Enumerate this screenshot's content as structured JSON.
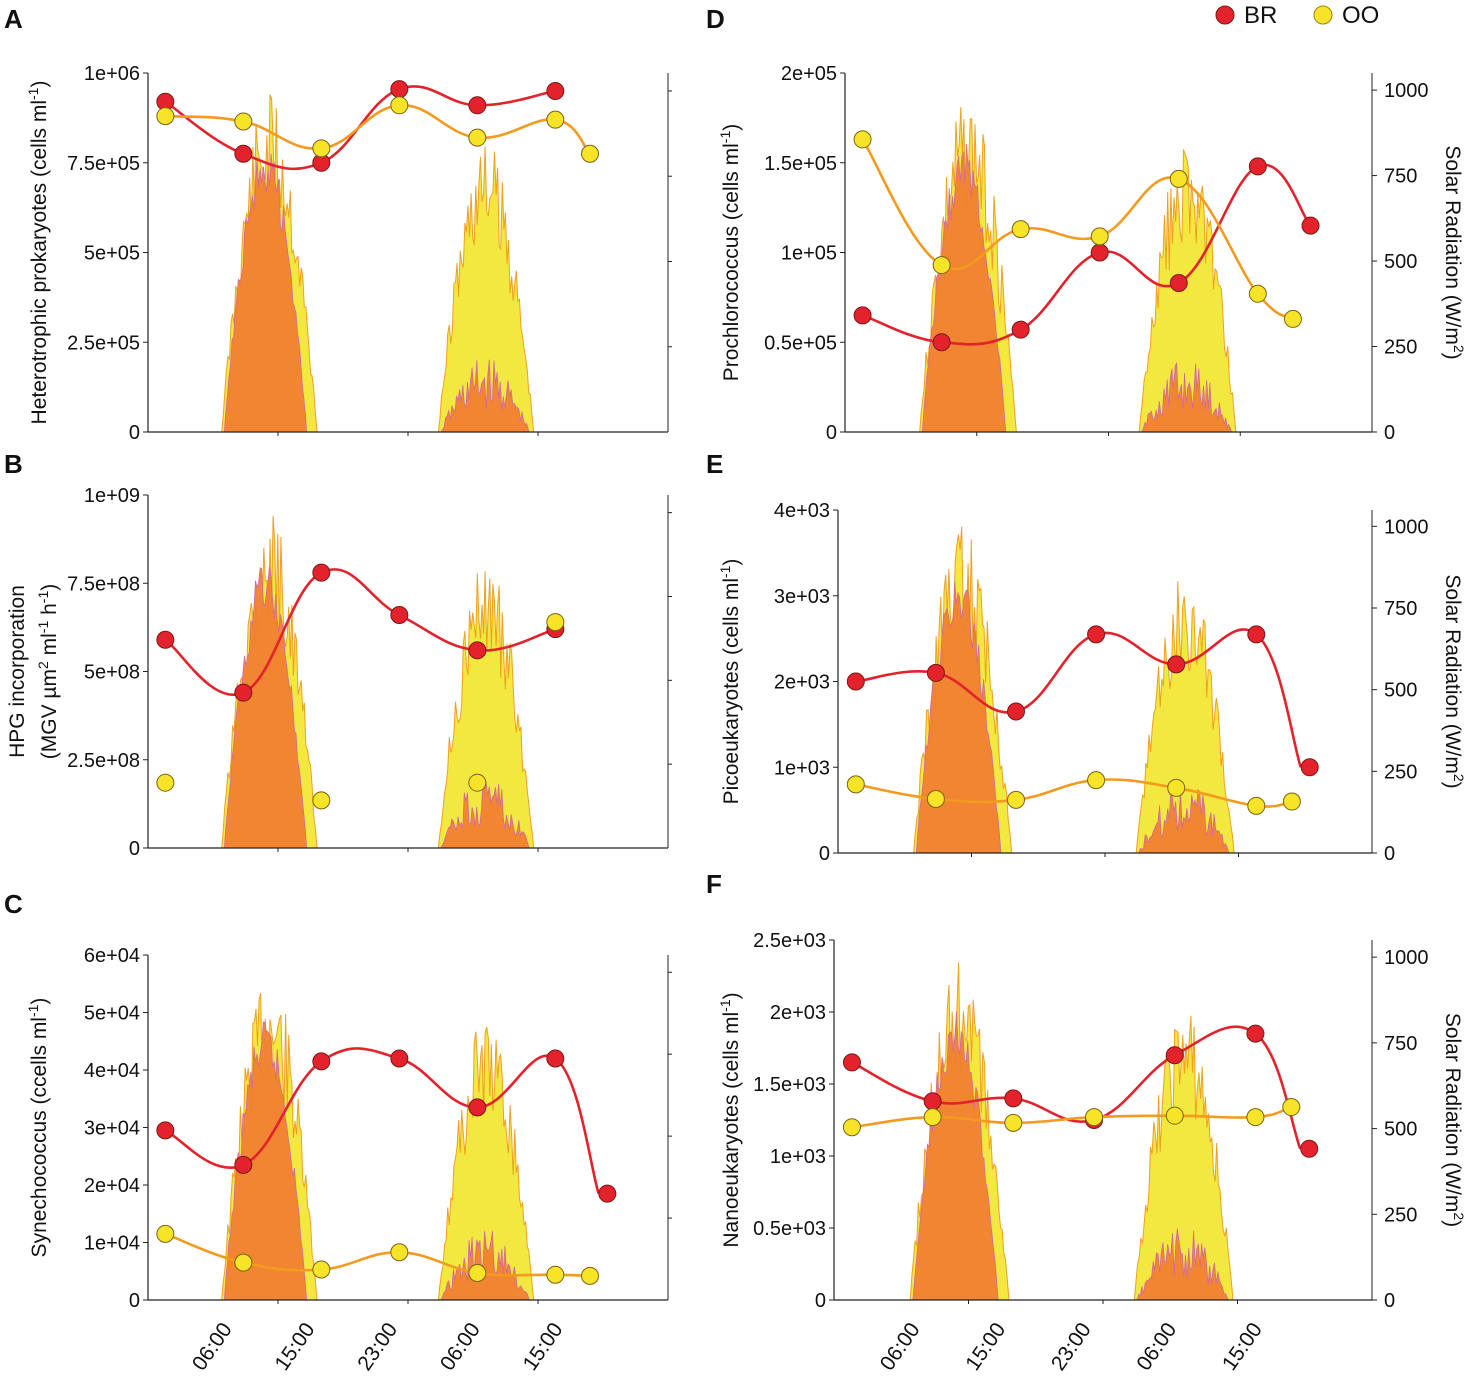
{
  "legend": [
    {
      "label": "BR",
      "color": "#e4222b"
    },
    {
      "label": "OO",
      "color": "#f7e327"
    }
  ],
  "colors": {
    "br_line": "#e4222b",
    "oo_line": "#f39a1f",
    "br_area": "#f08030",
    "oo_area": "#f2e840",
    "area_edge_br": "#d26aa0",
    "area_edge_oo": "#f0a020",
    "axis": "#222222"
  },
  "time_tick_labels": [
    "06:00",
    "15:00",
    "23:00",
    "06:00",
    "15:00"
  ],
  "solar_radiation": {
    "axis_label_main": "Solar Radiation (W/m",
    "axis_label_sup": "2",
    "axis_label_tail": ")",
    "ticks": [
      "0",
      "250",
      "500",
      "750",
      "1000"
    ],
    "tick_values": [
      0,
      250,
      500,
      750,
      1000
    ],
    "ylim": [
      0,
      1050
    ],
    "br_day1_peak_wm2": 850,
    "oo_day1_peak_wm2": 1000,
    "br_day2_peak_wm2": 220,
    "oo_day2_peak_wm2": 860
  },
  "chart_data": [
    {
      "panel": "A",
      "type": "line",
      "ylabel": "Heterotrophic prokaryotes  (cells ml",
      "ylabel_sup": "-1",
      "ylabel_tail": ")",
      "yticks": [
        "0",
        "2.5e+05",
        "5e+05",
        "7.5e+05",
        "1e+06"
      ],
      "ytick_values": [
        0,
        250000,
        500000,
        750000,
        1000000
      ],
      "ylim": [
        0,
        1000000
      ],
      "series": [
        {
          "name": "BR",
          "x": [
            2,
            11,
            20,
            29,
            38,
            47
          ],
          "values": [
            920000,
            775000,
            750000,
            955000,
            910000,
            950000
          ],
          "fit_end": 47
        },
        {
          "name": "OO",
          "x": [
            2,
            11,
            20,
            29,
            38,
            47,
            51
          ],
          "values": [
            880000,
            865000,
            790000,
            910000,
            820000,
            870000,
            775000
          ],
          "fit_end": 51
        }
      ]
    },
    {
      "panel": "B",
      "type": "line",
      "ylabel": "HPG incorporation",
      "ylabel2": "(MGV µm",
      "ylabel2_sup": "2",
      "ylabel2_mid": " ml",
      "ylabel2_sup2": "-1",
      "ylabel2_mid2": " h",
      "ylabel2_sup3": "-1",
      "ylabel2_tail": ")",
      "yticks": [
        "0",
        "2.5e+08",
        "5e+08",
        "7.5e+08",
        "1e+09"
      ],
      "ytick_values": [
        0,
        250000000,
        500000000,
        750000000,
        1000000000
      ],
      "ylim": [
        0,
        1000000000
      ],
      "series": [
        {
          "name": "BR",
          "x": [
            2,
            11,
            20,
            29,
            38,
            47
          ],
          "values": [
            590000000,
            440000000,
            780000000,
            660000000,
            560000000,
            620000000
          ],
          "fit_end": 47
        },
        {
          "name": "OO",
          "x": [
            2,
            20,
            38,
            47
          ],
          "values": [
            185000000,
            135000000,
            185000000,
            640000000
          ],
          "fit_end": null
        }
      ]
    },
    {
      "panel": "C",
      "type": "line",
      "ylabel": "Synechococcus (ccells ml",
      "ylabel_sup": "-1",
      "ylabel_tail": ")",
      "yticks": [
        "0",
        "1e+04",
        "2e+04",
        "3e+04",
        "4e+04",
        "5e+04",
        "6e+04"
      ],
      "ytick_values": [
        0,
        10000,
        20000,
        30000,
        40000,
        50000,
        60000
      ],
      "ylim": [
        0,
        60000
      ],
      "series": [
        {
          "name": "BR",
          "x": [
            2,
            11,
            20,
            29,
            38,
            47,
            53
          ],
          "values": [
            29500,
            23500,
            41500,
            42000,
            33500,
            42000,
            18500
          ],
          "fit_end": 52
        },
        {
          "name": "OO",
          "x": [
            2,
            11,
            20,
            29,
            38,
            47,
            51
          ],
          "values": [
            11500,
            6500,
            5300,
            8300,
            4700,
            4400,
            4200
          ],
          "fit_end": 51
        }
      ]
    },
    {
      "panel": "D",
      "type": "line",
      "ylabel": "Prochlorococcus (cells ml",
      "ylabel_sup": "-1",
      "ylabel_tail": ")",
      "yticks": [
        "0",
        "0.5e+05",
        "1e+05",
        "1.5e+05",
        "2e+05"
      ],
      "ytick_values": [
        0,
        50000,
        100000,
        150000,
        200000
      ],
      "ylim": [
        0,
        200000
      ],
      "series": [
        {
          "name": "BR",
          "x": [
            2,
            11,
            20,
            29,
            38,
            47,
            53
          ],
          "values": [
            65000,
            50000,
            57000,
            100000,
            83000,
            148000,
            115000
          ],
          "fit_end": 53
        },
        {
          "name": "OO",
          "x": [
            2,
            11,
            20,
            29,
            38,
            47,
            51
          ],
          "values": [
            163000,
            93000,
            113000,
            109000,
            141000,
            77000,
            63000
          ],
          "fit_end": 51
        }
      ]
    },
    {
      "panel": "E",
      "type": "line",
      "ylabel": "Picoeukaryotes (cells ml",
      "ylabel_sup": "-1",
      "ylabel_tail": ")",
      "yticks": [
        "0",
        "1e+03",
        "2e+03",
        "3e+03",
        "4e+03"
      ],
      "ytick_values": [
        0,
        1000,
        2000,
        3000,
        4000
      ],
      "ylim": [
        0,
        4000
      ],
      "series": [
        {
          "name": "BR",
          "x": [
            2,
            11,
            20,
            29,
            38,
            47,
            53
          ],
          "values": [
            2000,
            2100,
            1650,
            2550,
            2200,
            2550,
            1000
          ],
          "fit_end": 52
        },
        {
          "name": "OO",
          "x": [
            2,
            11,
            20,
            29,
            38,
            47,
            51
          ],
          "values": [
            800,
            630,
            620,
            850,
            760,
            550,
            600
          ],
          "fit_end": 51
        }
      ]
    },
    {
      "panel": "F",
      "type": "line",
      "ylabel": "Nanoeukaryotes (cells ml",
      "ylabel_sup": "-1",
      "ylabel_tail": ")",
      "yticks": [
        "0",
        "0.5e+03",
        "1e+03",
        "1.5e+03",
        "2e+03",
        "2.5e+03"
      ],
      "ytick_values": [
        0,
        500,
        1000,
        1500,
        2000,
        2500
      ],
      "ylim": [
        0,
        2500
      ],
      "series": [
        {
          "name": "BR",
          "x": [
            2,
            11,
            20,
            29,
            38,
            47,
            53
          ],
          "values": [
            1650,
            1380,
            1400,
            1250,
            1700,
            1850,
            1050
          ],
          "fit_end": 52
        },
        {
          "name": "OO",
          "x": [
            2,
            11,
            20,
            29,
            38,
            47,
            51
          ],
          "values": [
            1200,
            1270,
            1230,
            1270,
            1280,
            1270,
            1340
          ],
          "fit_end": 51
        }
      ]
    }
  ]
}
